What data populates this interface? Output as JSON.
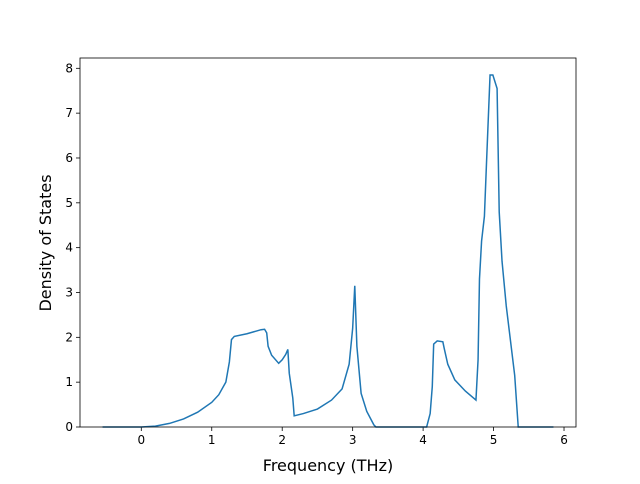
{
  "chart_data": {
    "type": "line",
    "xlabel": "Frequency (THz)",
    "ylabel": "Density of States",
    "x": [
      -0.55,
      0,
      0.2,
      0.4,
      0.6,
      0.8,
      1.0,
      1.1,
      1.2,
      1.25,
      1.28,
      1.32,
      1.5,
      1.7,
      1.75,
      1.78,
      1.8,
      1.85,
      1.95,
      2.0,
      2.05,
      2.08,
      2.1,
      2.15,
      2.17,
      2.3,
      2.5,
      2.7,
      2.85,
      2.95,
      3.0,
      3.03,
      3.06,
      3.12,
      3.2,
      3.3,
      3.33,
      4.05,
      4.1,
      4.13,
      4.15,
      4.2,
      4.28,
      4.3,
      4.35,
      4.45,
      4.6,
      4.75,
      4.78,
      4.8,
      4.83,
      4.87,
      4.9,
      4.95,
      4.99,
      5.05,
      5.08,
      5.12,
      5.18,
      5.3,
      5.35,
      5.85
    ],
    "series": [
      {
        "color": "#1f77b4",
        "values": [
          0,
          0,
          0.02,
          0.08,
          0.18,
          0.33,
          0.55,
          0.72,
          1.0,
          1.45,
          1.95,
          2.02,
          2.08,
          2.17,
          2.18,
          2.1,
          1.8,
          1.6,
          1.42,
          1.5,
          1.62,
          1.73,
          1.2,
          0.65,
          0.25,
          0.3,
          0.4,
          0.6,
          0.85,
          1.4,
          2.2,
          3.15,
          1.8,
          0.75,
          0.35,
          0.05,
          0,
          0,
          0.3,
          0.9,
          1.85,
          1.92,
          1.9,
          1.75,
          1.4,
          1.05,
          0.8,
          0.6,
          1.5,
          3.3,
          4.15,
          4.7,
          5.9,
          7.85,
          7.85,
          7.55,
          4.8,
          3.7,
          2.7,
          1.15,
          0,
          0
        ]
      }
    ],
    "xlim": [
      -0.87,
      6.17
    ],
    "xticks": [
      0,
      1,
      2,
      3,
      4,
      5,
      6
    ],
    "ylim": [
      0,
      8.23
    ],
    "yticks": [
      0,
      1,
      2,
      3,
      4,
      5,
      6,
      7,
      8
    ]
  }
}
